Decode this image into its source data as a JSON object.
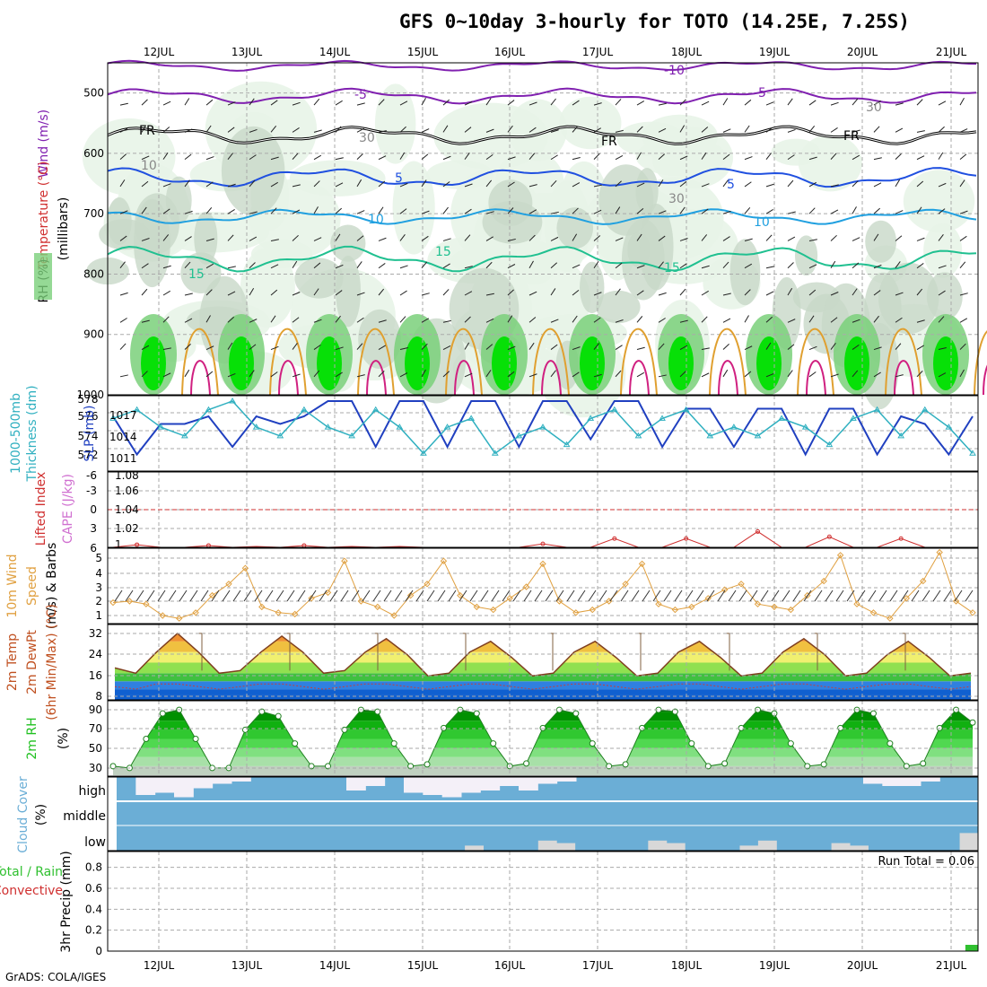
{
  "title": "GFS 0~10day 3-hourly for TOTO (14.25E, 7.25S)",
  "footer": "GrADS: COLA/IGES",
  "colors": {
    "rh_light": "#e8f4e8",
    "rh_mid": "#c8d8c8",
    "rh_green": "#7ad07a",
    "rh_bright": "#00e000",
    "t_minus10": "#8020b0",
    "t_minus5": "#8020b0",
    "t_fr": "#000000",
    "t5": "#2050e0",
    "t10": "#20a0e0",
    "t15": "#20c090",
    "t20": "#e0a030",
    "t25": "#c06020",
    "t30": "#d02080",
    "thickness": "#30b0c0",
    "slp": "#2040c0",
    "lifted": "#d03030",
    "cape": "#d070d0",
    "wind10": "#e0a040",
    "rh2m": "#20c020",
    "cloud": "#6baed6",
    "cloud_gap": "#f4f0f8",
    "precip": "#30c030"
  },
  "dates": [
    "12JUL",
    "13JUL",
    "14JUL",
    "15JUL",
    "16JUL",
    "17JUL",
    "18JUL",
    "19JUL",
    "20JUL",
    "21JUL"
  ],
  "panels": {
    "upper": {
      "ylabel_wind": "Wind (m/s)",
      "ylabel_temp": "Temperature (°C)",
      "ylabel_rh": "RH (%)",
      "ylabel_units": "(millibars)",
      "yticks": [
        "500",
        "600",
        "700",
        "800",
        "900",
        "1000"
      ],
      "contour_labels": [
        "-10",
        "-5",
        "-5",
        "FR",
        "FR",
        "FR",
        "5",
        "5",
        "10",
        "10",
        "15",
        "15",
        "15",
        "30",
        "30",
        "30",
        "10"
      ]
    },
    "thick": {
      "ylabel1": "1000-500mb",
      "ylabel2": "Thickness (dm)",
      "ylabel_right": "SLP (mb)",
      "yticks_left": [
        "578",
        "576",
        "574",
        "572"
      ],
      "yticks_right": [
        "1017",
        "1014",
        "1011"
      ]
    },
    "cape": {
      "ylabel1": "Lifted Index",
      "ylabel2": "CAPE (J/kg)",
      "yticks_left": [
        "-6",
        "-3",
        "0",
        "3",
        "6"
      ],
      "yticks_right": [
        "1.08",
        "1.06",
        "1.04",
        "1.02",
        "1"
      ]
    },
    "wind": {
      "ylabel1": "10m Wind",
      "ylabel2": "Speed",
      "ylabel3": "(m/s) & Barbs",
      "yticks": [
        "5",
        "4",
        "3",
        "2",
        "1"
      ]
    },
    "temp": {
      "ylabel1": "2m Temp",
      "ylabel2": "2m DewPt",
      "ylabel3": "(6hr Min/Max) (°C)",
      "yticks": [
        "32",
        "24",
        "16",
        "8"
      ]
    },
    "rh": {
      "ylabel1": "2m RH",
      "ylabel2": "(%)",
      "yticks": [
        "90",
        "70",
        "50",
        "30"
      ]
    },
    "cloud": {
      "ylabel1": "Cloud Cover",
      "ylabel2": "(%)",
      "levels": [
        "high",
        "middle",
        "low"
      ]
    },
    "precip": {
      "ylabel1": "3hr Precip (mm)",
      "ylabel_total": "Total / Rain",
      "ylabel_conv": "Convective",
      "run_total": "Run Total = 0.06",
      "yticks": [
        "0.8",
        "0.6",
        "0.4",
        "0.2",
        "0"
      ]
    }
  },
  "chart_data": [
    {
      "type": "line",
      "title": "1000-500mb Thickness (dm) / SLP (mb)",
      "series": [
        {
          "name": "SLP",
          "values": [
            1017,
            1012,
            1016,
            1016,
            1017,
            1013,
            1017,
            1016,
            1017,
            1019,
            1019,
            1013,
            1019,
            1019,
            1013,
            1019,
            1019,
            1013,
            1019,
            1019,
            1014,
            1019,
            1019,
            1013,
            1018,
            1018,
            1013,
            1018,
            1018,
            1012,
            1018,
            1018,
            1012,
            1017,
            1016,
            1012,
            1017
          ]
        },
        {
          "name": "1000-500mb Thickness",
          "values": [
            576,
            577,
            575,
            574,
            577,
            578,
            575,
            574,
            577,
            575,
            574,
            577,
            575,
            572,
            575,
            576,
            572,
            574,
            575,
            573,
            576,
            577,
            574,
            576,
            577,
            574,
            575,
            574,
            576,
            575,
            573,
            576,
            577,
            574,
            577,
            575,
            572
          ]
        }
      ]
    },
    {
      "type": "line",
      "title": "Lifted Index / CAPE (J/kg)",
      "series": [
        {
          "name": "CAPE",
          "values": [
            1.0,
            1.003,
            1.0,
            1.0,
            1.002,
            1.0,
            1.001,
            1.0,
            1.002,
            1.0,
            1.001,
            1.0,
            1.001,
            1.0,
            1.0,
            1.0,
            1.0,
            1.0,
            1.004,
            1.0,
            1.0,
            1.01,
            1.0,
            1.0,
            1.01,
            1.0,
            1.0,
            1.018,
            1.0,
            1.0,
            1.012,
            1.0,
            1.0,
            1.01,
            1.0,
            1.0,
            1.0
          ]
        }
      ],
      "reference_line": {
        "name": "Lifted Index 0",
        "value": 0
      }
    },
    {
      "type": "line",
      "title": "10m Wind Speed (m/s)",
      "series": [
        {
          "name": "10m Wind Speed",
          "values": [
            1.9,
            2.0,
            1.8,
            1.0,
            0.8,
            1.2,
            2.4,
            3.2,
            4.3,
            1.6,
            1.2,
            1.1,
            2.2,
            2.6,
            4.8,
            2.0,
            1.6,
            1.0,
            2.4,
            3.2,
            4.8,
            2.4,
            1.6,
            1.4,
            2.2,
            3.0,
            4.6,
            2.0,
            1.2,
            1.4,
            2.0,
            3.2,
            4.6,
            1.8,
            1.4,
            1.6,
            2.2,
            2.8,
            3.2,
            1.8,
            1.6,
            1.4,
            2.4,
            3.4,
            5.2,
            1.8,
            1.2,
            0.8,
            2.2,
            3.4,
            5.4,
            2.0,
            1.2
          ]
        }
      ]
    },
    {
      "type": "area",
      "title": "2m Temp / 2m DewPt (°C)",
      "series": [
        {
          "name": "2m Temp",
          "values": [
            18,
            16,
            24,
            31,
            24,
            16,
            17,
            24,
            30,
            24,
            16,
            17,
            24,
            29,
            23,
            15,
            16,
            24,
            28,
            22,
            15,
            16,
            24,
            28,
            22,
            15,
            16,
            24,
            28,
            22,
            15,
            16,
            24,
            29,
            23,
            15,
            16,
            23,
            28,
            22,
            15,
            16
          ]
        },
        {
          "name": "2m DewPt",
          "values": [
            11,
            10,
            12,
            12,
            11,
            10,
            11,
            12,
            12,
            11,
            10,
            11,
            12,
            12,
            11,
            10,
            11,
            12,
            12,
            11,
            10,
            11,
            12,
            12,
            11,
            10,
            11,
            12,
            12,
            11,
            10,
            11,
            12,
            12,
            11,
            10,
            11,
            12,
            12,
            11,
            10,
            11
          ]
        }
      ]
    },
    {
      "type": "area",
      "title": "2m RH (%)",
      "series": [
        {
          "name": "2m RH",
          "values": [
            30,
            28,
            60,
            88,
            92,
            60,
            28,
            28,
            70,
            90,
            85,
            55,
            30,
            30,
            70,
            92,
            90,
            55,
            30,
            32,
            72,
            92,
            88,
            55,
            30,
            33,
            72,
            92,
            88,
            55,
            30,
            32,
            72,
            92,
            90,
            55,
            30,
            33,
            72,
            92,
            88,
            55,
            30,
            32,
            72,
            92,
            88,
            55,
            30,
            33,
            72,
            92,
            78
          ]
        }
      ]
    },
    {
      "type": "bar",
      "title": "Cloud Cover (%)",
      "series": [
        {
          "name": "high",
          "values": [
            0,
            80,
            70,
            90,
            50,
            30,
            20,
            0,
            0,
            0,
            0,
            0,
            60,
            40,
            0,
            70,
            80,
            90,
            70,
            60,
            40,
            60,
            30,
            20,
            0,
            0,
            0,
            0,
            0,
            0,
            0,
            0,
            0,
            0,
            0,
            0,
            0,
            0,
            0,
            30,
            40,
            40,
            20,
            0,
            0
          ]
        },
        {
          "name": "low",
          "values": [
            0,
            0,
            0,
            0,
            0,
            0,
            0,
            0,
            0,
            0,
            0,
            0,
            0,
            0,
            0,
            0,
            0,
            0,
            0,
            20,
            0,
            0,
            0,
            40,
            30,
            0,
            0,
            0,
            0,
            40,
            30,
            0,
            0,
            0,
            20,
            40,
            0,
            0,
            0,
            30,
            20,
            0,
            0,
            0,
            0,
            0,
            70
          ]
        }
      ]
    },
    {
      "type": "bar",
      "title": "3hr Precip (mm)",
      "series": [
        {
          "name": "Total / Rain",
          "values": [
            0,
            0,
            0,
            0,
            0,
            0,
            0,
            0,
            0,
            0,
            0,
            0,
            0,
            0,
            0,
            0,
            0,
            0,
            0,
            0,
            0,
            0,
            0,
            0,
            0,
            0,
            0,
            0,
            0,
            0,
            0,
            0,
            0,
            0,
            0,
            0,
            0,
            0,
            0,
            0,
            0,
            0,
            0,
            0,
            0,
            0,
            0,
            0,
            0,
            0,
            0,
            0,
            0,
            0,
            0,
            0,
            0,
            0,
            0,
            0,
            0,
            0,
            0,
            0,
            0,
            0,
            0,
            0,
            0,
            0,
            0,
            0,
            0,
            0,
            0,
            0,
            0,
            0,
            0,
            0.06
          ]
        }
      ],
      "ylim": [
        0,
        0.9
      ]
    }
  ]
}
